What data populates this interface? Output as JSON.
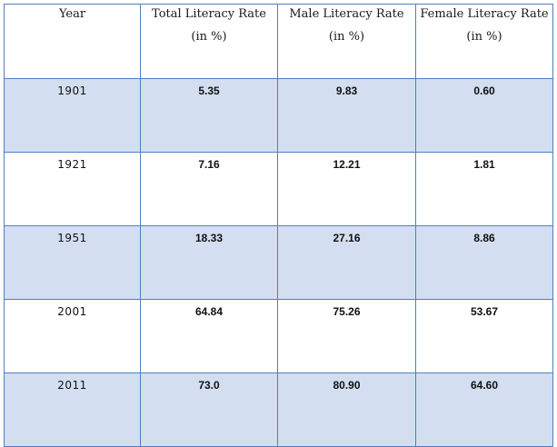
{
  "table": {
    "headers": [
      {
        "line1": "Year",
        "line2": ""
      },
      {
        "line1": "Total Literacy Rate",
        "line2": "(in %)"
      },
      {
        "line1": "Male Literacy Rate",
        "line2": "(in %)"
      },
      {
        "line1": "Female Literacy Rate",
        "line2": "(in %)"
      }
    ],
    "rows": [
      {
        "year": "1901",
        "total": "5.35",
        "male": "9.83",
        "female": "0.60"
      },
      {
        "year": "1921",
        "total": "7.16",
        "male": "12.21",
        "female": "1.81"
      },
      {
        "year": "1951",
        "total": "18.33",
        "male": "27.16",
        "female": "8.86"
      },
      {
        "year": "2001",
        "total": "64.84",
        "male": "75.26",
        "female": "53.67"
      },
      {
        "year": "2011",
        "total": "73.0",
        "male": "80.90",
        "female": "64.60"
      }
    ],
    "colors": {
      "border": "#4f7fbf",
      "shaded_row": "#d3dff0",
      "plain_row": "#ffffff"
    }
  }
}
